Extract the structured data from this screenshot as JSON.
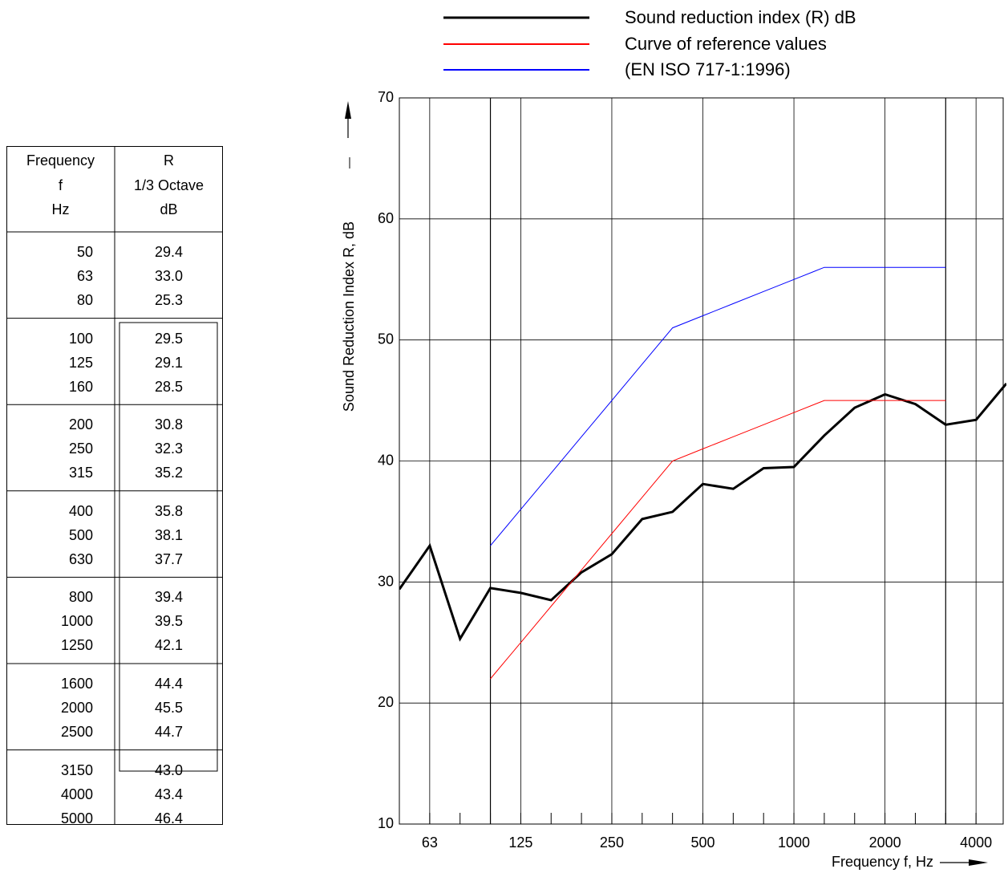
{
  "table": {
    "freq_header": [
      "Frequency",
      "f",
      "Hz"
    ],
    "r_header": [
      "R",
      "1/3 Octave",
      "dB"
    ],
    "rows": [
      {
        "f": "50",
        "r": "29.4"
      },
      {
        "f": "63",
        "r": "33.0"
      },
      {
        "f": "80",
        "r": "25.3"
      },
      {
        "f": "100",
        "r": "29.5"
      },
      {
        "f": "125",
        "r": "29.1"
      },
      {
        "f": "160",
        "r": "28.5"
      },
      {
        "f": "200",
        "r": "30.8"
      },
      {
        "f": "250",
        "r": "32.3"
      },
      {
        "f": "315",
        "r": "35.2"
      },
      {
        "f": "400",
        "r": "35.8"
      },
      {
        "f": "500",
        "r": "38.1"
      },
      {
        "f": "630",
        "r": "37.7"
      },
      {
        "f": "800",
        "r": "39.4"
      },
      {
        "f": "1000",
        "r": "39.5"
      },
      {
        "f": "1250",
        "r": "42.1"
      },
      {
        "f": "1600",
        "r": "44.4"
      },
      {
        "f": "2000",
        "r": "45.5"
      },
      {
        "f": "2500",
        "r": "44.7"
      },
      {
        "f": "3150",
        "r": "43.0"
      },
      {
        "f": "4000",
        "r": "43.4"
      },
      {
        "f": "5000",
        "r": "46.4"
      }
    ]
  },
  "chart_data": {
    "type": "line",
    "title": "",
    "xlabel": "Frequency f, Hz",
    "ylabel": "Sound Reduction Index R, dB",
    "x": [
      50,
      63,
      80,
      100,
      125,
      160,
      200,
      250,
      315,
      400,
      500,
      630,
      800,
      1000,
      1250,
      1600,
      2000,
      2500,
      3150,
      4000,
      5000
    ],
    "xscale": "log (1/3 octave bands)",
    "xticks": [
      "63",
      "125",
      "250",
      "500",
      "1000",
      "2000",
      "4000"
    ],
    "ylim": [
      10,
      70
    ],
    "yticks": [
      10,
      20,
      30,
      40,
      50,
      60,
      70
    ],
    "grid": true,
    "legend_position": "top",
    "legend_entries": [
      "Sound reduction index (R) dB",
      "Curve of reference values",
      "(EN ISO 717-1:1996)"
    ],
    "series": [
      {
        "name": "Sound reduction index (R) dB",
        "color": "#000000",
        "x": [
          50,
          63,
          80,
          100,
          125,
          160,
          200,
          250,
          315,
          400,
          500,
          630,
          800,
          1000,
          1250,
          1600,
          2000,
          2500,
          3150,
          4000,
          5000
        ],
        "values": [
          29.4,
          33.0,
          25.3,
          29.5,
          29.1,
          28.5,
          30.8,
          32.3,
          35.2,
          35.8,
          38.1,
          37.7,
          39.4,
          39.5,
          42.1,
          44.4,
          45.5,
          44.7,
          43.0,
          43.4,
          46.4
        ]
      },
      {
        "name": "Curve of reference values",
        "color": "#ff0000",
        "x": [
          100,
          125,
          160,
          200,
          250,
          315,
          400,
          500,
          630,
          800,
          1000,
          1250,
          1600,
          2000,
          2500,
          3150
        ],
        "values": [
          22,
          25,
          28,
          31,
          34,
          37,
          40,
          41,
          42,
          43,
          44,
          45,
          45,
          45,
          45,
          45
        ]
      },
      {
        "name": "(EN ISO 717-1:1996)",
        "color": "#0000ff",
        "x": [
          100,
          125,
          160,
          200,
          250,
          315,
          400,
          500,
          630,
          800,
          1000,
          1250,
          1600,
          2000,
          2500,
          3150
        ],
        "values": [
          33,
          36,
          39,
          42,
          45,
          48,
          51,
          52,
          53,
          54,
          55,
          56,
          56,
          56,
          56,
          56
        ]
      }
    ]
  }
}
